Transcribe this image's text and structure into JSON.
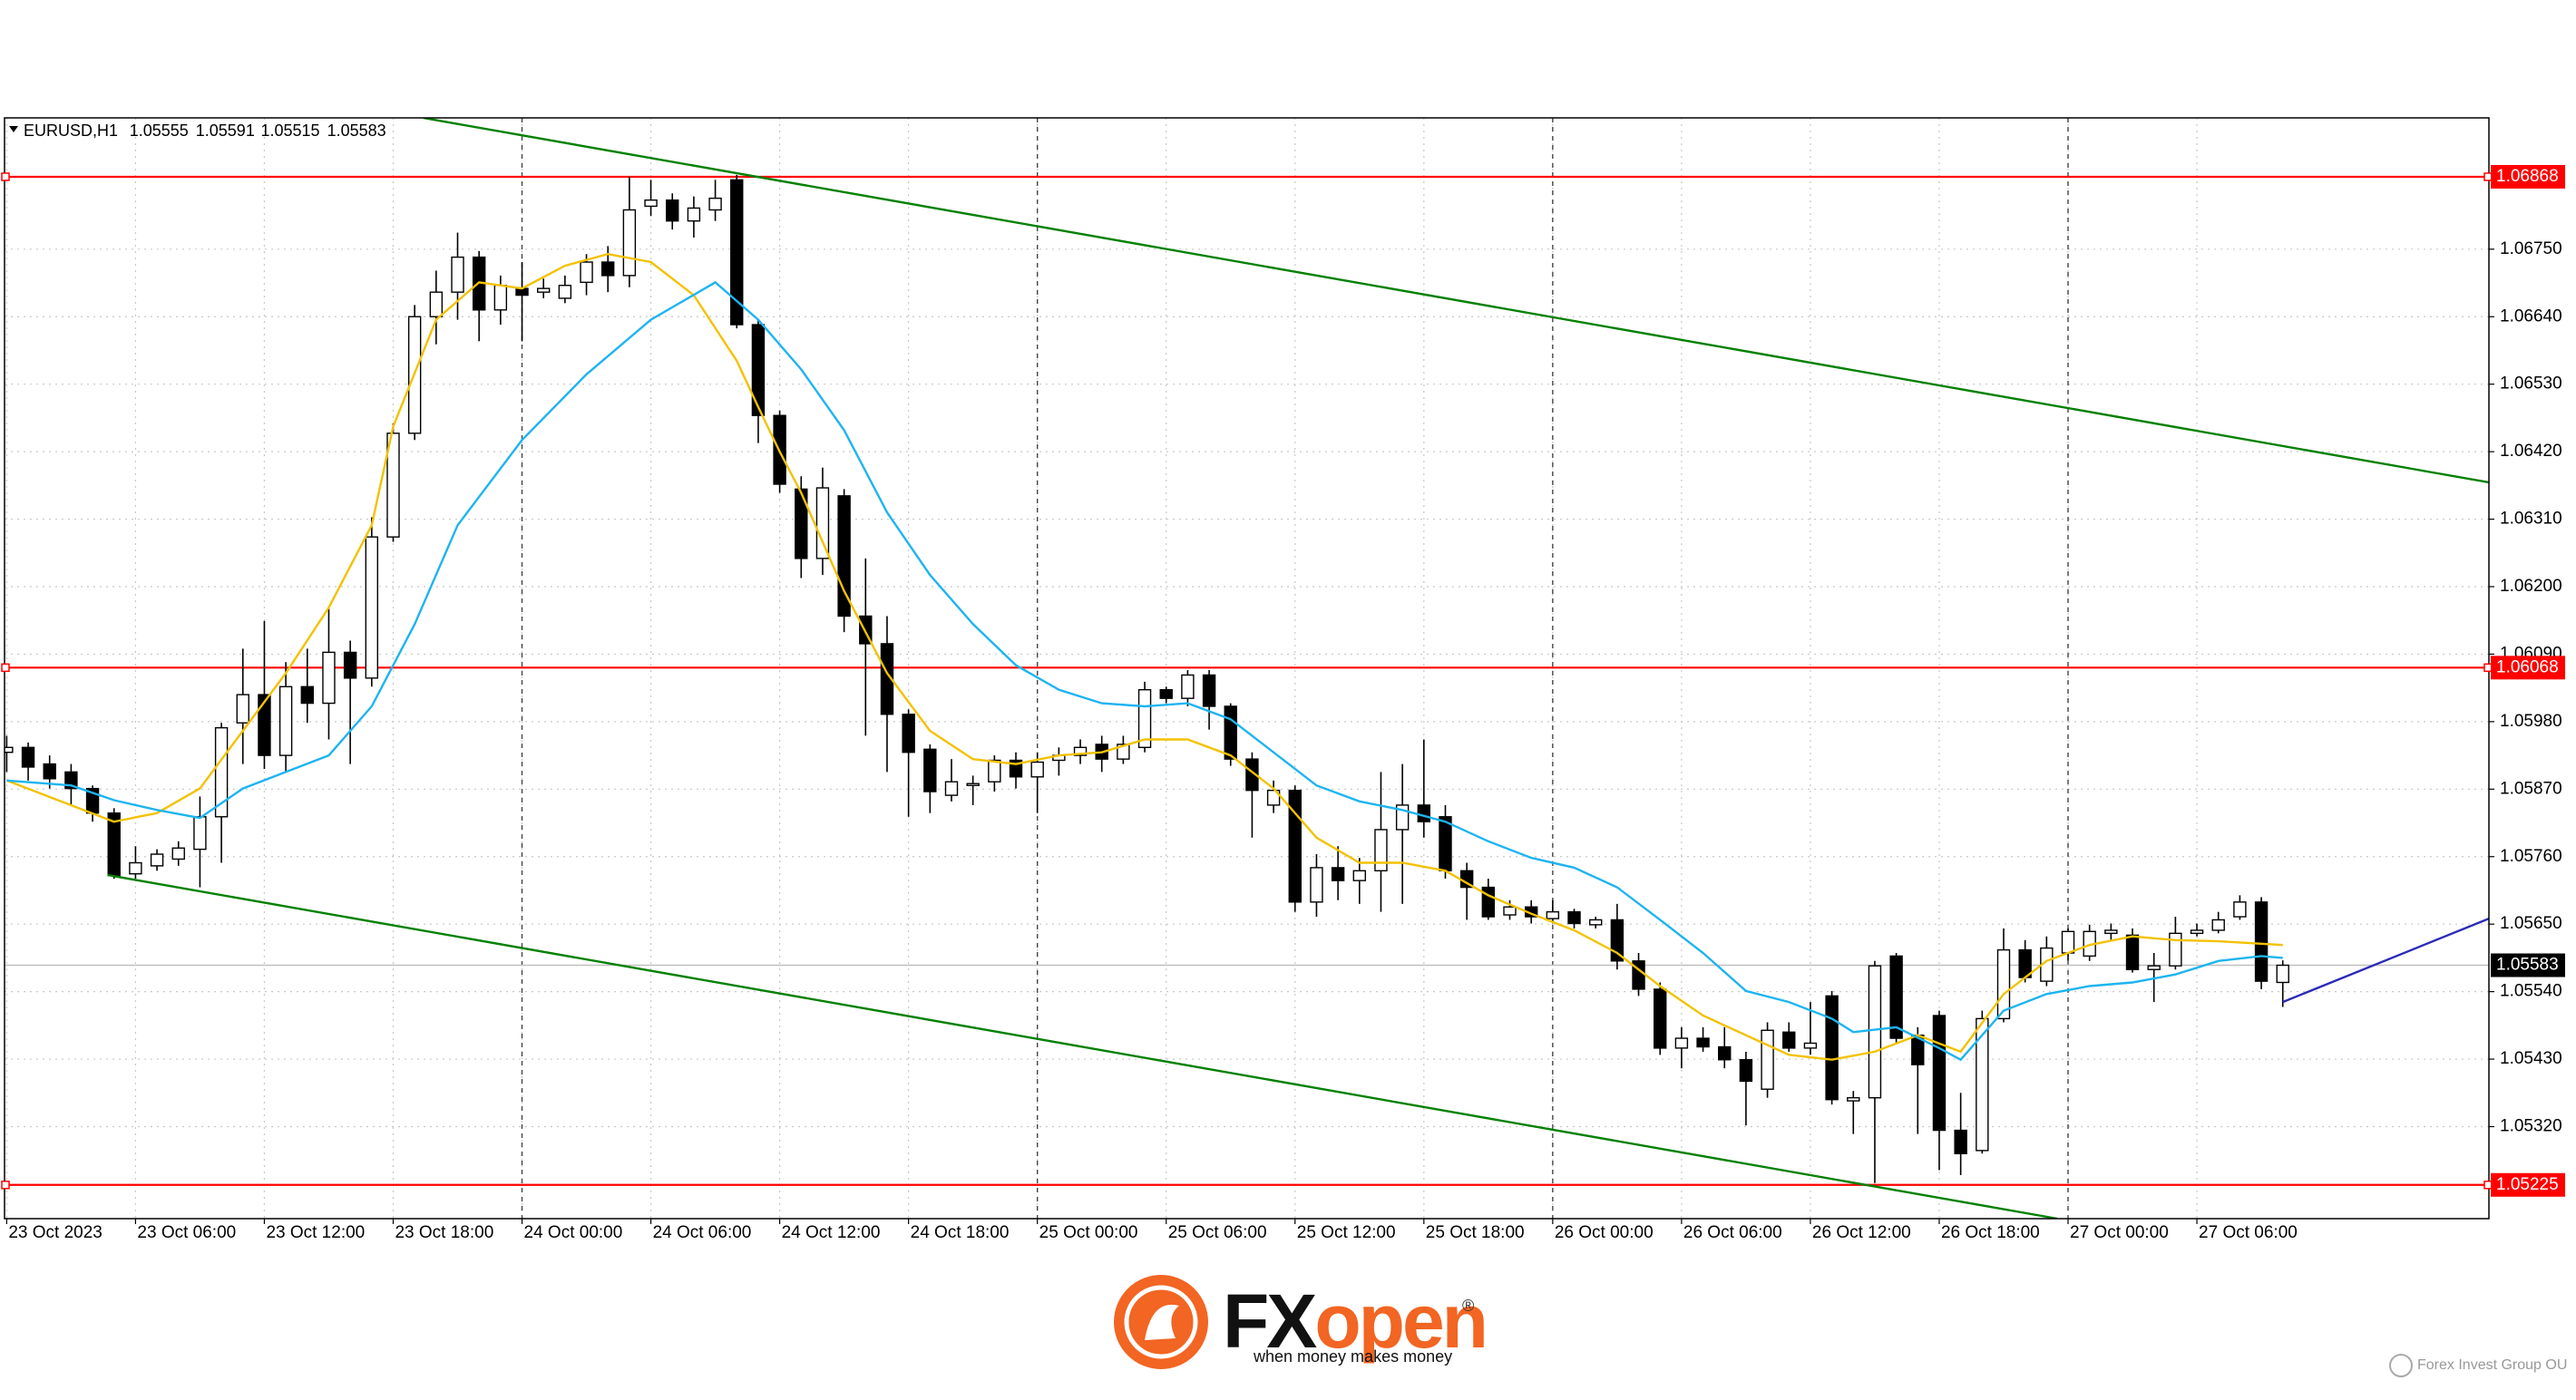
{
  "chart_data": {
    "type": "candlestick",
    "symbol": "EURUSD,H1",
    "bull_color": "#ffffff",
    "bear_color": "#000000",
    "xlim": [
      -0.1,
      115.6
    ],
    "ylim": [
      1.0517,
      1.06964
    ],
    "grid": true,
    "xticks": [
      {
        "value": 0,
        "label": "23 Oct 2023"
      },
      {
        "value": 6,
        "label": "23 Oct 06:00"
      },
      {
        "value": 12,
        "label": "23 Oct 12:00"
      },
      {
        "value": 18,
        "label": "23 Oct 18:00"
      },
      {
        "value": 24,
        "label": "24 Oct 00:00"
      },
      {
        "value": 30,
        "label": "24 Oct 06:00"
      },
      {
        "value": 36,
        "label": "24 Oct 12:00"
      },
      {
        "value": 42,
        "label": "24 Oct 18:00"
      },
      {
        "value": 48,
        "label": "25 Oct 00:00"
      },
      {
        "value": 54,
        "label": "25 Oct 06:00"
      },
      {
        "value": 60,
        "label": "25 Oct 12:00"
      },
      {
        "value": 66,
        "label": "25 Oct 18:00"
      },
      {
        "value": 72,
        "label": "26 Oct 00:00"
      },
      {
        "value": 78,
        "label": "26 Oct 06:00"
      },
      {
        "value": 84,
        "label": "26 Oct 12:00"
      },
      {
        "value": 90,
        "label": "26 Oct 18:00"
      },
      {
        "value": 96,
        "label": "27 Oct 00:00"
      },
      {
        "value": 102,
        "label": "27 Oct 06:00"
      }
    ],
    "day_separators": [
      24,
      48,
      72,
      96
    ],
    "yticks": [
      {
        "value": 1.0675,
        "label": "1.06750"
      },
      {
        "value": 1.0664,
        "label": "1.06640"
      },
      {
        "value": 1.0653,
        "label": "1.06530"
      },
      {
        "value": 1.0642,
        "label": "1.06420"
      },
      {
        "value": 1.0631,
        "label": "1.06310"
      },
      {
        "value": 1.062,
        "label": "1.06200"
      },
      {
        "value": 1.0609,
        "label": "1.06090"
      },
      {
        "value": 1.0598,
        "label": "1.05980"
      },
      {
        "value": 1.0587,
        "label": "1.05870"
      },
      {
        "value": 1.0576,
        "label": "1.05760"
      },
      {
        "value": 1.0565,
        "label": "1.05650"
      },
      {
        "value": 1.0554,
        "label": "1.05540"
      },
      {
        "value": 1.0543,
        "label": "1.05430"
      },
      {
        "value": 1.0532,
        "label": "1.05320"
      }
    ],
    "open": [
      1.0593,
      1.05938,
      1.05911,
      1.05898,
      1.05871,
      1.05831,
      1.05732,
      1.05745,
      1.05756,
      1.05772,
      1.05825,
      1.05978,
      1.06024,
      1.05925,
      1.06037,
      1.0601,
      1.06093,
      1.06051,
      1.06281,
      1.0645,
      1.0664,
      1.0668,
      1.06737,
      1.06651,
      1.06686,
      1.0668,
      1.0667,
      1.06696,
      1.06729,
      1.06707,
      1.0682,
      1.0683,
      1.06796,
      1.06814,
      1.06863,
      1.06627,
      1.06479,
      1.06359,
      1.06246,
      1.06348,
      1.06152,
      1.06107,
      1.05992,
      1.05935,
      1.0586,
      1.05876,
      1.05882,
      1.05917,
      1.0589,
      1.05917,
      1.05925,
      1.05943,
      1.05919,
      1.05938,
      1.06032,
      1.06018,
      1.06056,
      1.06005,
      1.05919,
      1.05844,
      1.05868,
      1.05686,
      1.05742,
      1.05721,
      1.05737,
      1.05804,
      1.05844,
      1.05825,
      1.05737,
      1.0571,
      1.05665,
      1.05678,
      1.05659,
      1.0567,
      1.05649,
      1.05657,
      1.0559,
      1.05544,
      1.05448,
      1.05464,
      1.0545,
      1.05429,
      1.05381,
      1.05474,
      1.05448,
      1.05533,
      1.05362,
      1.05367,
      1.05598,
      1.05469,
      1.05501,
      1.05314,
      1.05281,
      1.05496,
      1.05608,
      1.05557,
      1.05603,
      1.05598,
      1.05635,
      1.05632,
      1.05576,
      1.05582,
      1.05635,
      1.0564,
      1.05662,
      1.05686,
      1.05555
    ],
    "high": [
      1.05957,
      1.05946,
      1.05925,
      1.05911,
      1.05876,
      1.05839,
      1.05777,
      1.05772,
      1.05785,
      1.05858,
      1.05978,
      1.06099,
      1.06144,
      1.06077,
      1.06099,
      1.06166,
      1.06112,
      1.06313,
      1.06466,
      1.06659,
      1.06715,
      1.06777,
      1.06747,
      1.06707,
      1.06729,
      1.06702,
      1.06707,
      1.06742,
      1.06755,
      1.06868,
      1.06863,
      1.06841,
      1.06836,
      1.06863,
      1.06871,
      1.06635,
      1.06487,
      1.0638,
      1.06394,
      1.06359,
      1.06246,
      1.06152,
      1.06,
      1.05943,
      1.05919,
      1.05892,
      1.05925,
      1.0593,
      1.0593,
      1.05938,
      1.05951,
      1.05957,
      1.05957,
      1.06045,
      1.06037,
      1.06064,
      1.06064,
      1.0601,
      1.0593,
      1.05884,
      1.05876,
      1.05764,
      1.05777,
      1.05758,
      1.05898,
      1.05911,
      1.05951,
      1.05844,
      1.0575,
      1.05724,
      1.05689,
      1.05689,
      1.05689,
      1.05675,
      1.05662,
      1.05683,
      1.05603,
      1.05555,
      1.05482,
      1.05482,
      1.05482,
      1.05442,
      1.0549,
      1.0549,
      1.05523,
      1.05541,
      1.05378,
      1.0559,
      1.05603,
      1.05482,
      1.05509,
      1.05375,
      1.05509,
      1.05643,
      1.05624,
      1.0563,
      1.05643,
      1.05649,
      1.05651,
      1.05643,
      1.05603,
      1.05662,
      1.05651,
      1.0567,
      1.05697,
      1.05694,
      1.05591
    ],
    "low": [
      1.05898,
      1.05884,
      1.05871,
      1.05844,
      1.05817,
      1.05724,
      1.05724,
      1.05737,
      1.05745,
      1.0571,
      1.0575,
      1.05911,
      1.05903,
      1.05898,
      1.05978,
      1.05951,
      1.05911,
      1.06037,
      1.06273,
      1.06439,
      1.06595,
      1.06635,
      1.066,
      1.06627,
      1.066,
      1.0667,
      1.06662,
      1.06675,
      1.0668,
      1.06688,
      1.06804,
      1.06782,
      1.06769,
      1.06796,
      1.06621,
      1.06434,
      1.06353,
      1.06214,
      1.06219,
      1.06126,
      1.05957,
      1.05898,
      1.05825,
      1.05831,
      1.0585,
      1.05844,
      1.05866,
      1.05871,
      1.05831,
      1.05892,
      1.05911,
      1.05898,
      1.05911,
      1.0593,
      1.0601,
      1.06005,
      1.05967,
      1.05908,
      1.05791,
      1.05831,
      1.0567,
      1.05662,
      1.05689,
      1.05683,
      1.0567,
      1.05683,
      1.05791,
      1.05724,
      1.05657,
      1.05657,
      1.05657,
      1.05651,
      1.05651,
      1.05643,
      1.05643,
      1.05576,
      1.05533,
      1.05437,
      1.05415,
      1.05442,
      1.05415,
      1.05322,
      1.05367,
      1.05442,
      1.05437,
      1.05356,
      1.05308,
      1.05228,
      1.05456,
      1.05308,
      1.05249,
      1.05241,
      1.05276,
      1.0549,
      1.05555,
      1.05549,
      1.0559,
      1.0559,
      1.05624,
      1.05571,
      1.05523,
      1.05576,
      1.0563,
      1.05635,
      1.05657,
      1.05544,
      1.05515
    ],
    "close": [
      1.05938,
      1.05906,
      1.05887,
      1.05871,
      1.05831,
      1.05729,
      1.0575,
      1.05764,
      1.05774,
      1.05825,
      1.0597,
      1.06024,
      1.05925,
      1.06037,
      1.0601,
      1.06093,
      1.06051,
      1.06281,
      1.0645,
      1.0664,
      1.0668,
      1.06737,
      1.06651,
      1.06691,
      1.06675,
      1.06686,
      1.06691,
      1.06729,
      1.06707,
      1.06814,
      1.0683,
      1.06796,
      1.06817,
      1.06833,
      1.06627,
      1.06479,
      1.06367,
      1.06246,
      1.06361,
      1.06152,
      1.06107,
      1.05992,
      1.0593,
      1.05866,
      1.05882,
      1.05879,
      1.05917,
      1.0589,
      1.05914,
      1.05925,
      1.05938,
      1.05919,
      1.05943,
      1.06032,
      1.06018,
      1.06056,
      1.06005,
      1.05919,
      1.05868,
      1.05868,
      1.05686,
      1.05742,
      1.05721,
      1.05737,
      1.05804,
      1.05844,
      1.05817,
      1.05737,
      1.0571,
      1.05662,
      1.05678,
      1.05662,
      1.0567,
      1.05651,
      1.05657,
      1.0559,
      1.05544,
      1.05448,
      1.05464,
      1.0545,
      1.05429,
      1.05394,
      1.05477,
      1.05448,
      1.05456,
      1.05364,
      1.05367,
      1.05582,
      1.05464,
      1.05421,
      1.05314,
      1.05276,
      1.05496,
      1.05608,
      1.05563,
      1.05611,
      1.05638,
      1.05638,
      1.0564,
      1.05576,
      1.05582,
      1.05635,
      1.0564,
      1.05657,
      1.05686,
      1.05557,
      1.05583
    ],
    "price_line_color": "#c0c0c0",
    "levels": [
      {
        "value": 1.06868,
        "color": "#ff0000"
      },
      {
        "value": 1.06068,
        "color": "#ff0000"
      },
      {
        "value": 1.05225,
        "color": "#ff0000"
      }
    ],
    "lines": [
      {
        "color": "#f2c200",
        "x": [
          0,
          5,
          7,
          9,
          11,
          13,
          15,
          17,
          18,
          20,
          22,
          24,
          26,
          28,
          30,
          32,
          34,
          35,
          36,
          37,
          39,
          41,
          43,
          45,
          47,
          49,
          51,
          53,
          55,
          57,
          59,
          61,
          63,
          65,
          67,
          69,
          71,
          73,
          75,
          77,
          79,
          81,
          83,
          85,
          87,
          89,
          91,
          93,
          95,
          97,
          99,
          101,
          103,
          106
        ],
        "values": [
          1.05884,
          1.05817,
          1.05831,
          1.05871,
          1.05965,
          1.06059,
          1.06166,
          1.063,
          1.06461,
          1.06635,
          1.06696,
          1.06686,
          1.06723,
          1.06742,
          1.06729,
          1.06675,
          1.06568,
          1.06493,
          1.0642,
          1.06353,
          1.06193,
          1.06059,
          1.05965,
          1.05919,
          1.05911,
          1.05925,
          1.0593,
          1.05951,
          1.05951,
          1.05925,
          1.05871,
          1.05791,
          1.0575,
          1.0575,
          1.05737,
          1.05697,
          1.05667,
          1.0564,
          1.05603,
          1.05549,
          1.05501,
          1.05469,
          1.05437,
          1.05429,
          1.05442,
          1.05469,
          1.05442,
          1.05536,
          1.0559,
          1.05616,
          1.0563,
          1.05624,
          1.05622,
          1.05616
        ]
      },
      {
        "color": "#1eb4f0",
        "x": [
          0,
          3,
          5,
          7,
          9,
          11,
          13,
          15,
          17,
          19,
          21,
          24,
          27,
          30,
          33,
          35,
          37,
          39,
          41,
          43,
          45,
          47,
          49,
          51,
          53,
          55,
          57,
          59,
          61,
          63,
          65,
          67,
          69,
          71,
          73,
          75,
          77,
          79,
          81,
          83,
          85,
          86,
          88,
          90,
          91,
          93,
          95,
          97,
          99,
          101,
          103,
          105,
          106
        ],
        "values": [
          1.05884,
          1.05876,
          1.05852,
          1.05836,
          1.05823,
          1.05871,
          1.05898,
          1.05925,
          1.06005,
          1.06139,
          1.063,
          1.06439,
          1.06546,
          1.06635,
          1.06696,
          1.06635,
          1.06554,
          1.06455,
          1.06321,
          1.06219,
          1.06139,
          1.06072,
          1.06032,
          1.0601,
          1.06005,
          1.0601,
          1.05984,
          1.0593,
          1.05876,
          1.0585,
          1.05836,
          1.05817,
          1.05785,
          1.05758,
          1.05742,
          1.0571,
          1.05657,
          1.05603,
          1.05541,
          1.05523,
          1.05496,
          1.05474,
          1.05482,
          1.05448,
          1.05429,
          1.05509,
          1.05536,
          1.05549,
          1.05555,
          1.05568,
          1.0559,
          1.05598,
          1.05595
        ]
      },
      {
        "color": "#008000",
        "x": [
          19.4,
          115.6
        ],
        "values": [
          1.06964,
          1.0637
        ]
      },
      {
        "color": "#008000",
        "x": [
          4.7,
          95.5
        ],
        "values": [
          1.0573,
          1.0517
        ]
      },
      {
        "color": "#2a2ab8",
        "x": [
          106,
          115.6
        ],
        "values": [
          1.05523,
          1.05659
        ]
      }
    ]
  },
  "branding": {
    "logo_fx": "FX",
    "logo_open": "open",
    "registered": "®",
    "tagline": "when money makes money",
    "footer": "Forex Invest Group OU"
  }
}
